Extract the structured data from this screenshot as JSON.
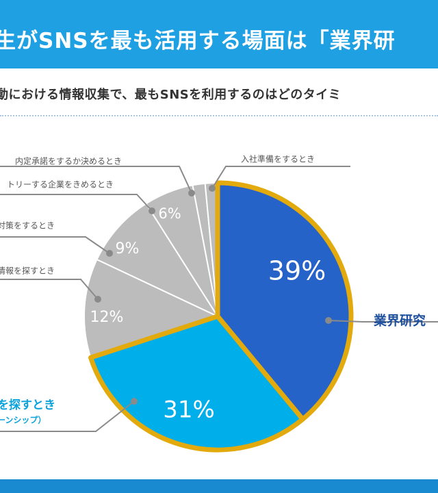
{
  "header": {
    "title": "生がSNSを最も活用する場面は「業界研",
    "subtitle": "動における情報収集で、最もSNSを利用するのはどのタイミ"
  },
  "colors": {
    "header_bg": "#1ea0e3",
    "highlight_a": "#2563c9",
    "highlight_b": "#00aeea",
    "other": "#bcbcbc",
    "highlight_border": "#e2aa0c",
    "footer_bg": "#1a8ad0"
  },
  "chart_data": {
    "type": "pie",
    "slices": [
      {
        "name": "業界研究",
        "value": 39,
        "label": "39%",
        "highlight": true,
        "color": "#2563c9"
      },
      {
        "name": "を探すとき",
        "value": 31,
        "label": "31%",
        "highlight": true,
        "color": "#00aeea",
        "sublabel": "ーンシップ）"
      },
      {
        "name": "情報を探すとき",
        "value": 12,
        "label": "12%",
        "highlight": false,
        "color": "#bcbcbc"
      },
      {
        "name": "対策をするとき",
        "value": 9,
        "label": "9%",
        "highlight": false,
        "color": "#bcbcbc"
      },
      {
        "name": "トリーする企業をきめるとき",
        "value": 6,
        "label": "6%",
        "highlight": false,
        "color": "#bcbcbc"
      },
      {
        "name": "内定承諾をするか決めるとき",
        "value": 1.5,
        "label": "",
        "highlight": false,
        "color": "#bcbcbc"
      },
      {
        "name": "入社準備をするとき",
        "value": 1.5,
        "label": "",
        "highlight": false,
        "color": "#bcbcbc"
      }
    ]
  }
}
